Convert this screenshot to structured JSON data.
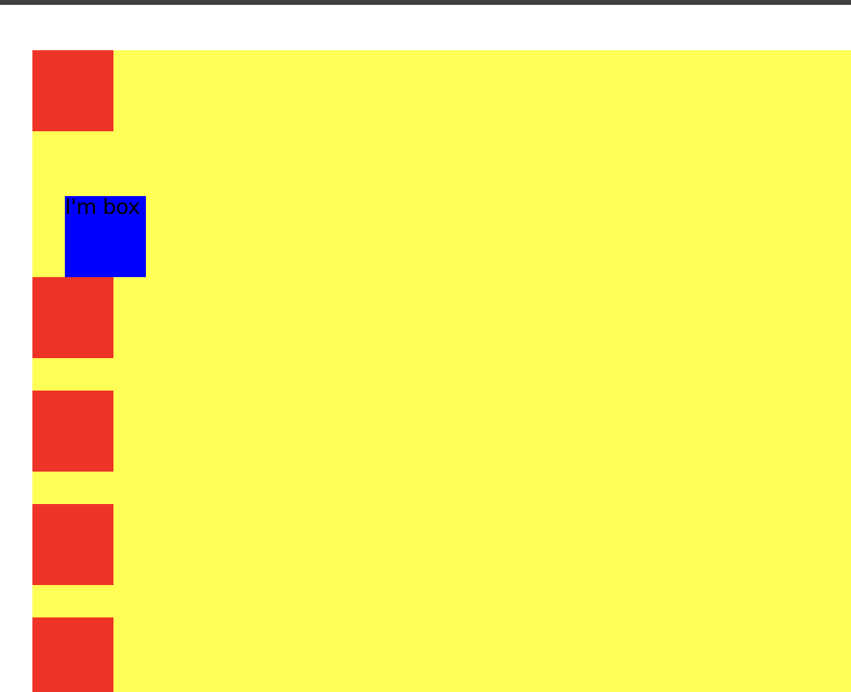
{
  "colors": {
    "topbar": "#3f3f3f",
    "page_background": "#ffffff",
    "container": "#ffff55",
    "red_box": "#ee3427",
    "blue_box": "#0000ff"
  },
  "blue_box": {
    "text": "I'm box"
  },
  "red_boxes": 5
}
